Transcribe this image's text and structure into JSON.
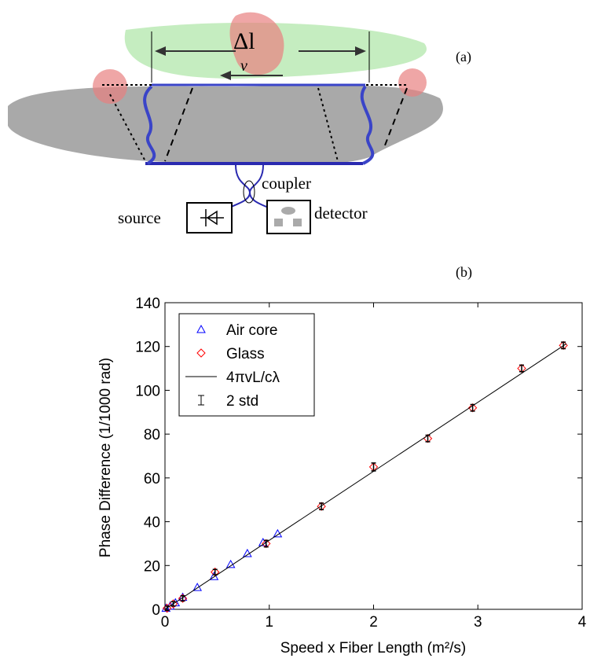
{
  "diagram": {
    "delta_label": "Δl",
    "speed_label": "v",
    "panel_label": "(a)",
    "coupler_label": "coupler",
    "source_label": "source",
    "detector_label": "detector"
  },
  "chart_data": {
    "type": "scatter",
    "panel_label": "(b)",
    "x_label": "Speed x Fiber Length (m²/s)",
    "y_label": "Phase Difference (1/1000 rad)",
    "xlim": [
      0,
      4
    ],
    "xticks": [
      0,
      1,
      2,
      3,
      4
    ],
    "ylim": [
      0,
      140
    ],
    "yticks": [
      0,
      20,
      40,
      60,
      80,
      100,
      120,
      140
    ],
    "grid": false,
    "legend": "upper left",
    "series": [
      {
        "name": "Air core",
        "marker": "triangle",
        "color": "#0000ff",
        "x": [
          0.01,
          0.05,
          0.1,
          0.17,
          0.31,
          0.47,
          0.63,
          0.79,
          0.94,
          1.08
        ],
        "values": [
          0.5,
          1.5,
          3,
          5.5,
          10,
          15,
          20.5,
          25.5,
          30.5,
          34.5
        ]
      },
      {
        "name": "Glass",
        "marker": "diamond",
        "color": "#ff0000",
        "x": [
          0.02,
          0.08,
          0.17,
          0.48,
          0.97,
          1.5,
          2.0,
          2.52,
          2.95,
          3.42,
          3.82
        ],
        "values": [
          0.5,
          2.5,
          5,
          17,
          30,
          47,
          65,
          78,
          92,
          110,
          120.5
        ]
      },
      {
        "name": "4πvL/cλ",
        "marker": "line",
        "color": "#000000",
        "x": [
          0,
          3.85
        ],
        "values": [
          0,
          121.3
        ]
      },
      {
        "name": "2 std",
        "marker": "errorbar",
        "color": "#000000",
        "x": [
          0.02,
          0.08,
          0.17,
          0.48,
          0.97,
          1.5,
          2.0,
          2.52,
          2.95,
          3.42,
          3.82
        ],
        "values": [
          0.5,
          2.5,
          5,
          17,
          30,
          47,
          65,
          78,
          92,
          110,
          120.5
        ],
        "errors": [
          1,
          1,
          1.2,
          1.2,
          1.5,
          1.5,
          1.8,
          1.5,
          1.5,
          1.5,
          1.5
        ]
      }
    ]
  }
}
